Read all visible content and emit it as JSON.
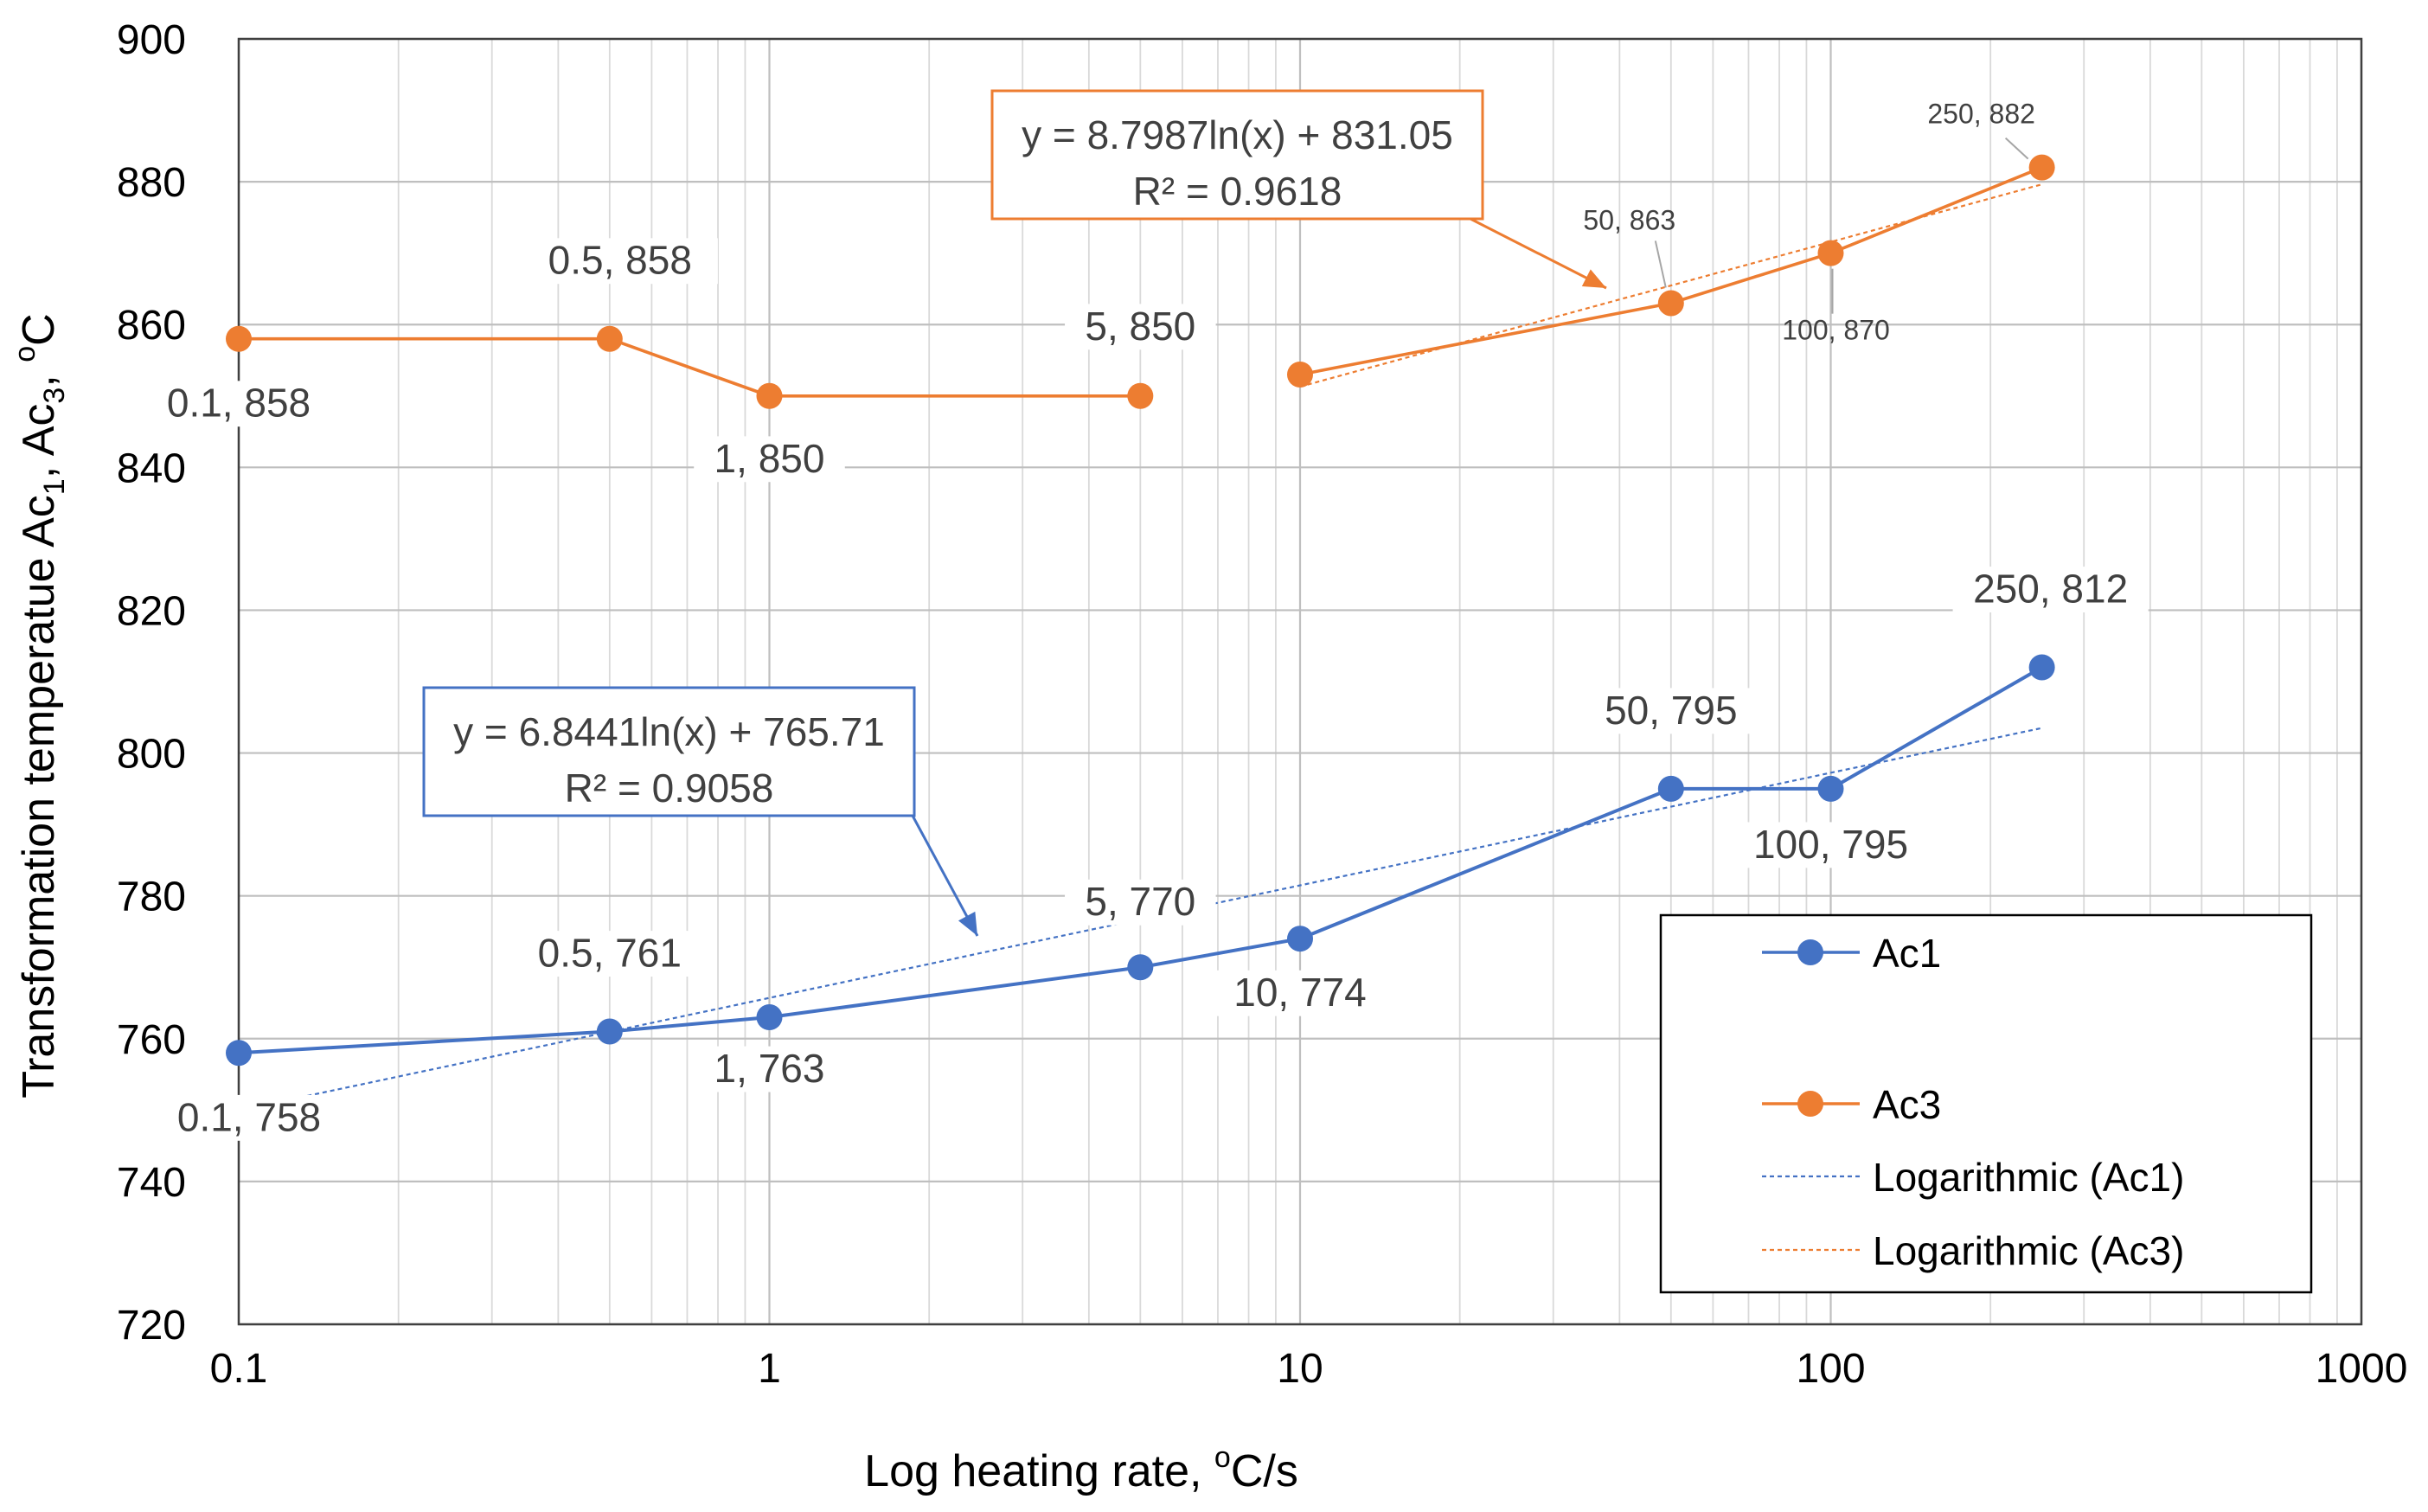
{
  "chart_data": {
    "type": "line",
    "xscale": "log",
    "xlabel": "Log heating rate, oC/s",
    "ylabel": "Transformation temperatue Ac1, Ac3, oC",
    "xlim": [
      0.1,
      1000
    ],
    "ylim": [
      720,
      900
    ],
    "x_ticks": [
      0.1,
      1,
      10,
      100,
      1000
    ],
    "x_tick_labels": [
      "0.1",
      "1",
      "10",
      "100",
      "1000"
    ],
    "y_ticks": [
      720,
      740,
      760,
      780,
      800,
      820,
      840,
      860,
      880,
      900
    ],
    "grid": true,
    "colors": {
      "ac1": "#4472C4",
      "ac3": "#ED7D31"
    },
    "series": [
      {
        "name": "Ac1",
        "color": "#4472C4",
        "segments": [
          [
            {
              "x": 0.1,
              "y": 758
            },
            {
              "x": 0.5,
              "y": 761
            },
            {
              "x": 1,
              "y": 763
            },
            {
              "x": 5,
              "y": 770
            },
            {
              "x": 10,
              "y": 774
            },
            {
              "x": 50,
              "y": 795
            },
            {
              "x": 100,
              "y": 795
            },
            {
              "x": 250,
              "y": 812
            }
          ]
        ],
        "labels": [
          "0.1, 758",
          "0.5, 761",
          "1, 763",
          "5, 770",
          "10, 774",
          "50, 795",
          "100, 795",
          "250, 812"
        ]
      },
      {
        "name": "Ac3",
        "color": "#ED7D31",
        "segments": [
          [
            {
              "x": 0.1,
              "y": 858
            },
            {
              "x": 0.5,
              "y": 858
            },
            {
              "x": 1,
              "y": 850
            },
            {
              "x": 5,
              "y": 850
            }
          ],
          [
            {
              "x": 10,
              "y": 853
            },
            {
              "x": 50,
              "y": 863
            },
            {
              "x": 100,
              "y": 870
            },
            {
              "x": 250,
              "y": 882
            }
          ]
        ],
        "labels": [
          "0.1, 858",
          "0.5, 858",
          "1, 850",
          "5, 850",
          "50, 863",
          "100, 870",
          "250, 882"
        ]
      }
    ],
    "trendlines": [
      {
        "name": "Logarithmic  (Ac1)",
        "series": "Ac1",
        "a": 6.8441,
        "b": 765.71,
        "x_range": [
          0.1,
          250
        ],
        "equation": "y = 6.8441ln(x) + 765.71",
        "r2": "R² = 0.9058"
      },
      {
        "name": "Logarithmic  (Ac3)",
        "series": "Ac3",
        "a": 8.7987,
        "b": 831.05,
        "x_range": [
          10,
          250
        ],
        "equation": "y = 8.7987ln(x) + 831.05",
        "r2": "R² = 0.9618"
      }
    ],
    "legend": {
      "position": "bottom-right",
      "entries": [
        "Ac1",
        "Ac3",
        "Logarithmic  (Ac1)",
        "Logarithmic  (Ac3)"
      ]
    }
  }
}
